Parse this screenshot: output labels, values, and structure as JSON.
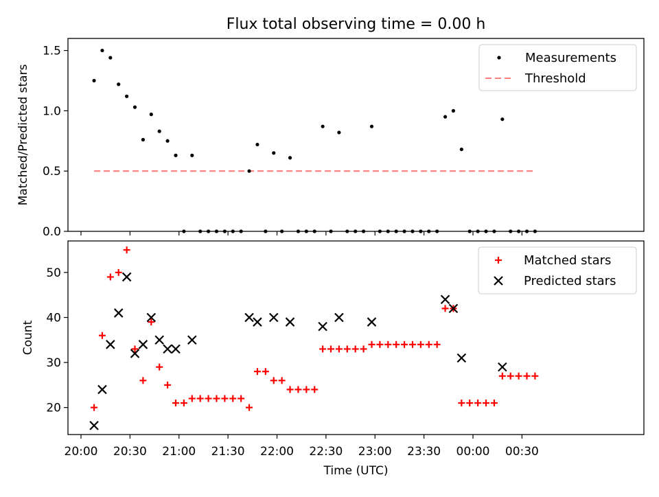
{
  "chart_data": [
    {
      "type": "scatter",
      "title": "Flux total observing time = 0.00 h",
      "xlabel": "",
      "ylabel": "Matched/Predicted stars",
      "ylim": [
        0,
        1.6
      ],
      "yticks": [
        "0.0",
        "0.5",
        "1.0",
        "1.5"
      ],
      "grid": false,
      "legend_position": "top-right",
      "series": [
        {
          "name": "Measurements",
          "kind": "point",
          "color": "#000000",
          "points": [
            [
              "20:08",
              1.25
            ],
            [
              "20:13",
              1.5
            ],
            [
              "20:18",
              1.44
            ],
            [
              "20:23",
              1.22
            ],
            [
              "20:28",
              1.12
            ],
            [
              "20:33",
              1.03
            ],
            [
              "20:38",
              0.76
            ],
            [
              "20:43",
              0.97
            ],
            [
              "20:48",
              0.83
            ],
            [
              "20:53",
              0.75
            ],
            [
              "20:58",
              0.63
            ],
            [
              "21:03",
              0.0
            ],
            [
              "21:08",
              0.63
            ],
            [
              "21:13",
              0.0
            ],
            [
              "21:18",
              0.0
            ],
            [
              "21:23",
              0.0
            ],
            [
              "21:28",
              0.0
            ],
            [
              "21:33",
              0.0
            ],
            [
              "21:38",
              0.0
            ],
            [
              "21:43",
              0.5
            ],
            [
              "21:48",
              0.72
            ],
            [
              "21:53",
              0.0
            ],
            [
              "21:58",
              0.65
            ],
            [
              "22:03",
              0.0
            ],
            [
              "22:08",
              0.61
            ],
            [
              "22:13",
              0.0
            ],
            [
              "22:18",
              0.0
            ],
            [
              "22:23",
              0.0
            ],
            [
              "22:28",
              0.87
            ],
            [
              "22:33",
              0.0
            ],
            [
              "22:38",
              0.82
            ],
            [
              "22:43",
              0.0
            ],
            [
              "22:48",
              0.0
            ],
            [
              "22:53",
              0.0
            ],
            [
              "22:58",
              0.87
            ],
            [
              "23:03",
              0.0
            ],
            [
              "23:08",
              0.0
            ],
            [
              "23:13",
              0.0
            ],
            [
              "23:18",
              0.0
            ],
            [
              "23:23",
              0.0
            ],
            [
              "23:28",
              0.0
            ],
            [
              "23:33",
              0.0
            ],
            [
              "23:38",
              0.0
            ],
            [
              "23:43",
              0.95
            ],
            [
              "23:48",
              1.0
            ],
            [
              "23:53",
              0.68
            ],
            [
              "23:58",
              0.0
            ],
            [
              "00:03",
              0.0
            ],
            [
              "00:08",
              0.0
            ],
            [
              "00:13",
              0.0
            ],
            [
              "00:18",
              0.93
            ],
            [
              "00:23",
              0.0
            ],
            [
              "00:28",
              0.0
            ],
            [
              "00:33",
              0.0
            ],
            [
              "00:38",
              0.0
            ]
          ]
        },
        {
          "name": "Threshold",
          "kind": "dashed-line",
          "color": "#ff7f7f",
          "points": [
            [
              "20:08",
              0.5
            ],
            [
              "00:38",
              0.5
            ]
          ]
        }
      ]
    },
    {
      "type": "scatter",
      "title": "",
      "xlabel": "Time (UTC)",
      "ylabel": "Count",
      "ylim": [
        14,
        57
      ],
      "yticks": [
        "20",
        "30",
        "40",
        "50"
      ],
      "xticks": [
        "20:00",
        "20:30",
        "21:00",
        "21:30",
        "22:00",
        "22:30",
        "23:00",
        "23:30",
        "00:00",
        "00:30"
      ],
      "grid": false,
      "legend_position": "top-right",
      "series": [
        {
          "name": "Matched stars",
          "kind": "plus",
          "color": "#ff0000",
          "points": [
            [
              "20:08",
              20
            ],
            [
              "20:13",
              36
            ],
            [
              "20:18",
              49
            ],
            [
              "20:23",
              50
            ],
            [
              "20:28",
              55
            ],
            [
              "20:33",
              33
            ],
            [
              "20:38",
              26
            ],
            [
              "20:43",
              39
            ],
            [
              "20:48",
              29
            ],
            [
              "20:53",
              25
            ],
            [
              "20:58",
              21
            ],
            [
              "21:03",
              21
            ],
            [
              "21:08",
              22
            ],
            [
              "21:13",
              22
            ],
            [
              "21:18",
              22
            ],
            [
              "21:23",
              22
            ],
            [
              "21:28",
              22
            ],
            [
              "21:33",
              22
            ],
            [
              "21:38",
              22
            ],
            [
              "21:43",
              20
            ],
            [
              "21:48",
              28
            ],
            [
              "21:53",
              28
            ],
            [
              "21:58",
              26
            ],
            [
              "22:03",
              26
            ],
            [
              "22:08",
              24
            ],
            [
              "22:13",
              24
            ],
            [
              "22:18",
              24
            ],
            [
              "22:23",
              24
            ],
            [
              "22:28",
              33
            ],
            [
              "22:33",
              33
            ],
            [
              "22:38",
              33
            ],
            [
              "22:43",
              33
            ],
            [
              "22:48",
              33
            ],
            [
              "22:53",
              33
            ],
            [
              "22:58",
              34
            ],
            [
              "23:03",
              34
            ],
            [
              "23:08",
              34
            ],
            [
              "23:13",
              34
            ],
            [
              "23:18",
              34
            ],
            [
              "23:23",
              34
            ],
            [
              "23:28",
              34
            ],
            [
              "23:33",
              34
            ],
            [
              "23:38",
              34
            ],
            [
              "23:43",
              42
            ],
            [
              "23:48",
              42
            ],
            [
              "23:53",
              21
            ],
            [
              "23:58",
              21
            ],
            [
              "00:03",
              21
            ],
            [
              "00:08",
              21
            ],
            [
              "00:13",
              21
            ],
            [
              "00:18",
              27
            ],
            [
              "00:23",
              27
            ],
            [
              "00:28",
              27
            ],
            [
              "00:33",
              27
            ],
            [
              "00:38",
              27
            ]
          ]
        },
        {
          "name": "Predicted stars",
          "kind": "x",
          "color": "#000000",
          "points": [
            [
              "20:08",
              16
            ],
            [
              "20:13",
              24
            ],
            [
              "20:18",
              34
            ],
            [
              "20:23",
              41
            ],
            [
              "20:28",
              49
            ],
            [
              "20:33",
              32
            ],
            [
              "20:38",
              34
            ],
            [
              "20:43",
              40
            ],
            [
              "20:48",
              35
            ],
            [
              "20:53",
              33
            ],
            [
              "20:58",
              33
            ],
            [
              "21:08",
              35
            ],
            [
              "21:43",
              40
            ],
            [
              "21:48",
              39
            ],
            [
              "21:58",
              40
            ],
            [
              "22:08",
              39
            ],
            [
              "22:28",
              38
            ],
            [
              "22:38",
              40
            ],
            [
              "22:58",
              39
            ],
            [
              "23:43",
              44
            ],
            [
              "23:48",
              42
            ],
            [
              "23:53",
              31
            ],
            [
              "00:18",
              29
            ]
          ]
        }
      ]
    }
  ]
}
